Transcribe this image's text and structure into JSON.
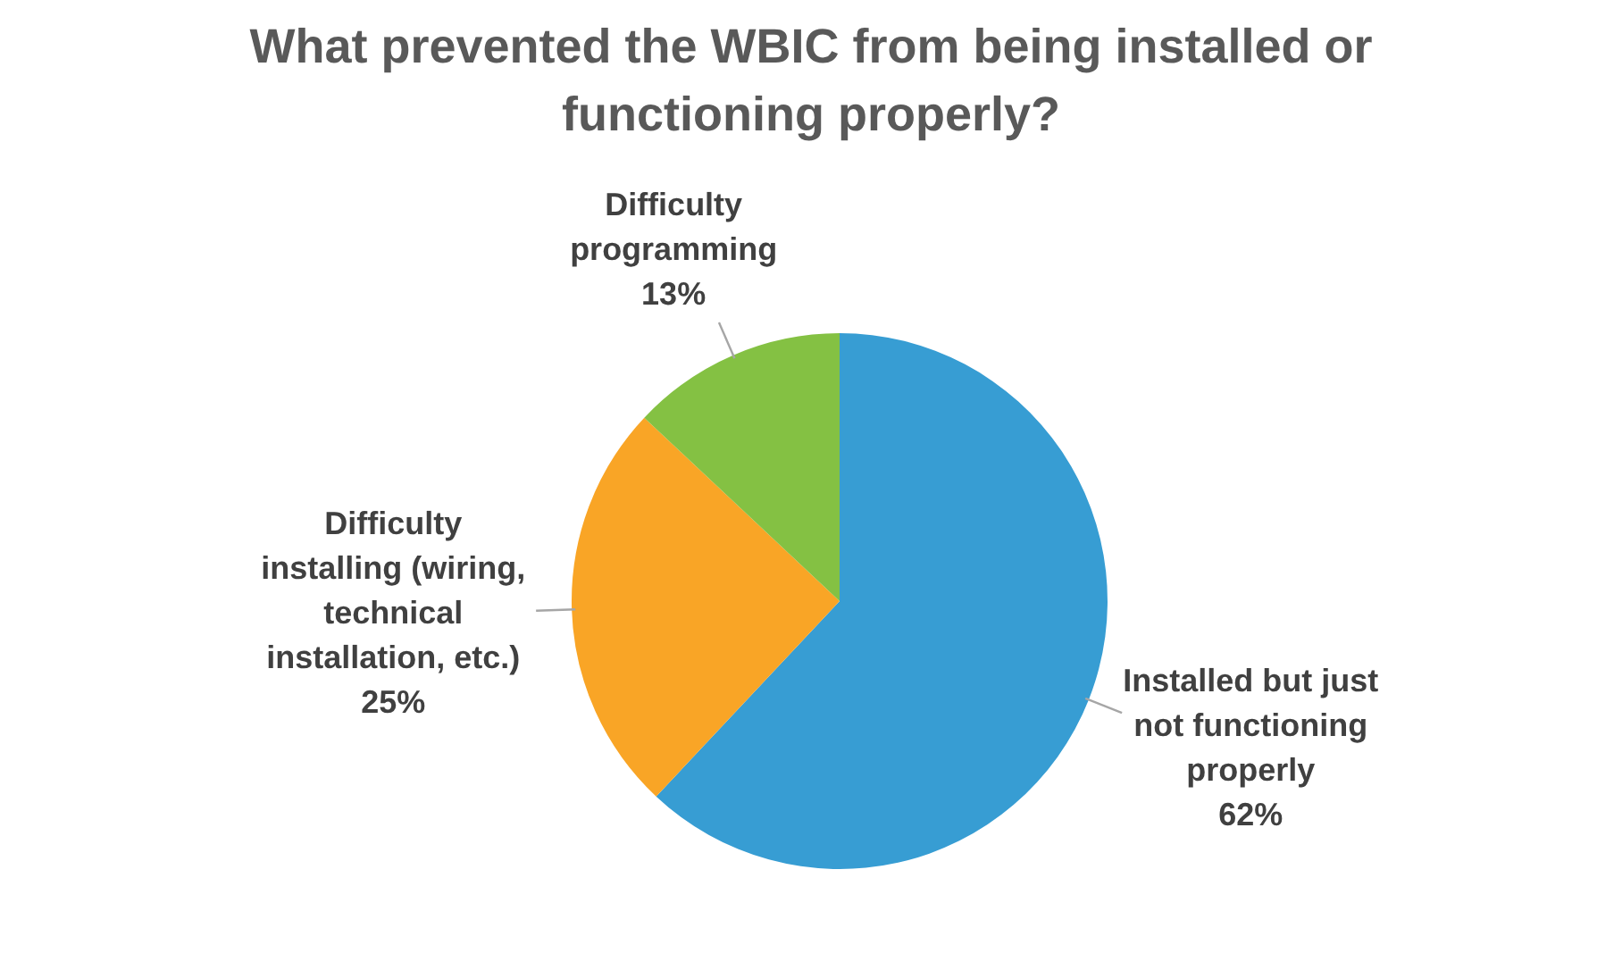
{
  "chart_data": {
    "type": "pie",
    "title": "What prevented the WBIC from being installed or functioning properly?",
    "categories": [
      "Installed but just not functioning properly",
      "Difficulty installing (wiring, technical installation, etc.)",
      "Difficulty programming"
    ],
    "values": [
      62,
      25,
      13
    ],
    "colors": [
      "#379dd3",
      "#f9a526",
      "#84c143"
    ],
    "value_labels": [
      "62%",
      "25%",
      "13%"
    ],
    "legend": false
  }
}
